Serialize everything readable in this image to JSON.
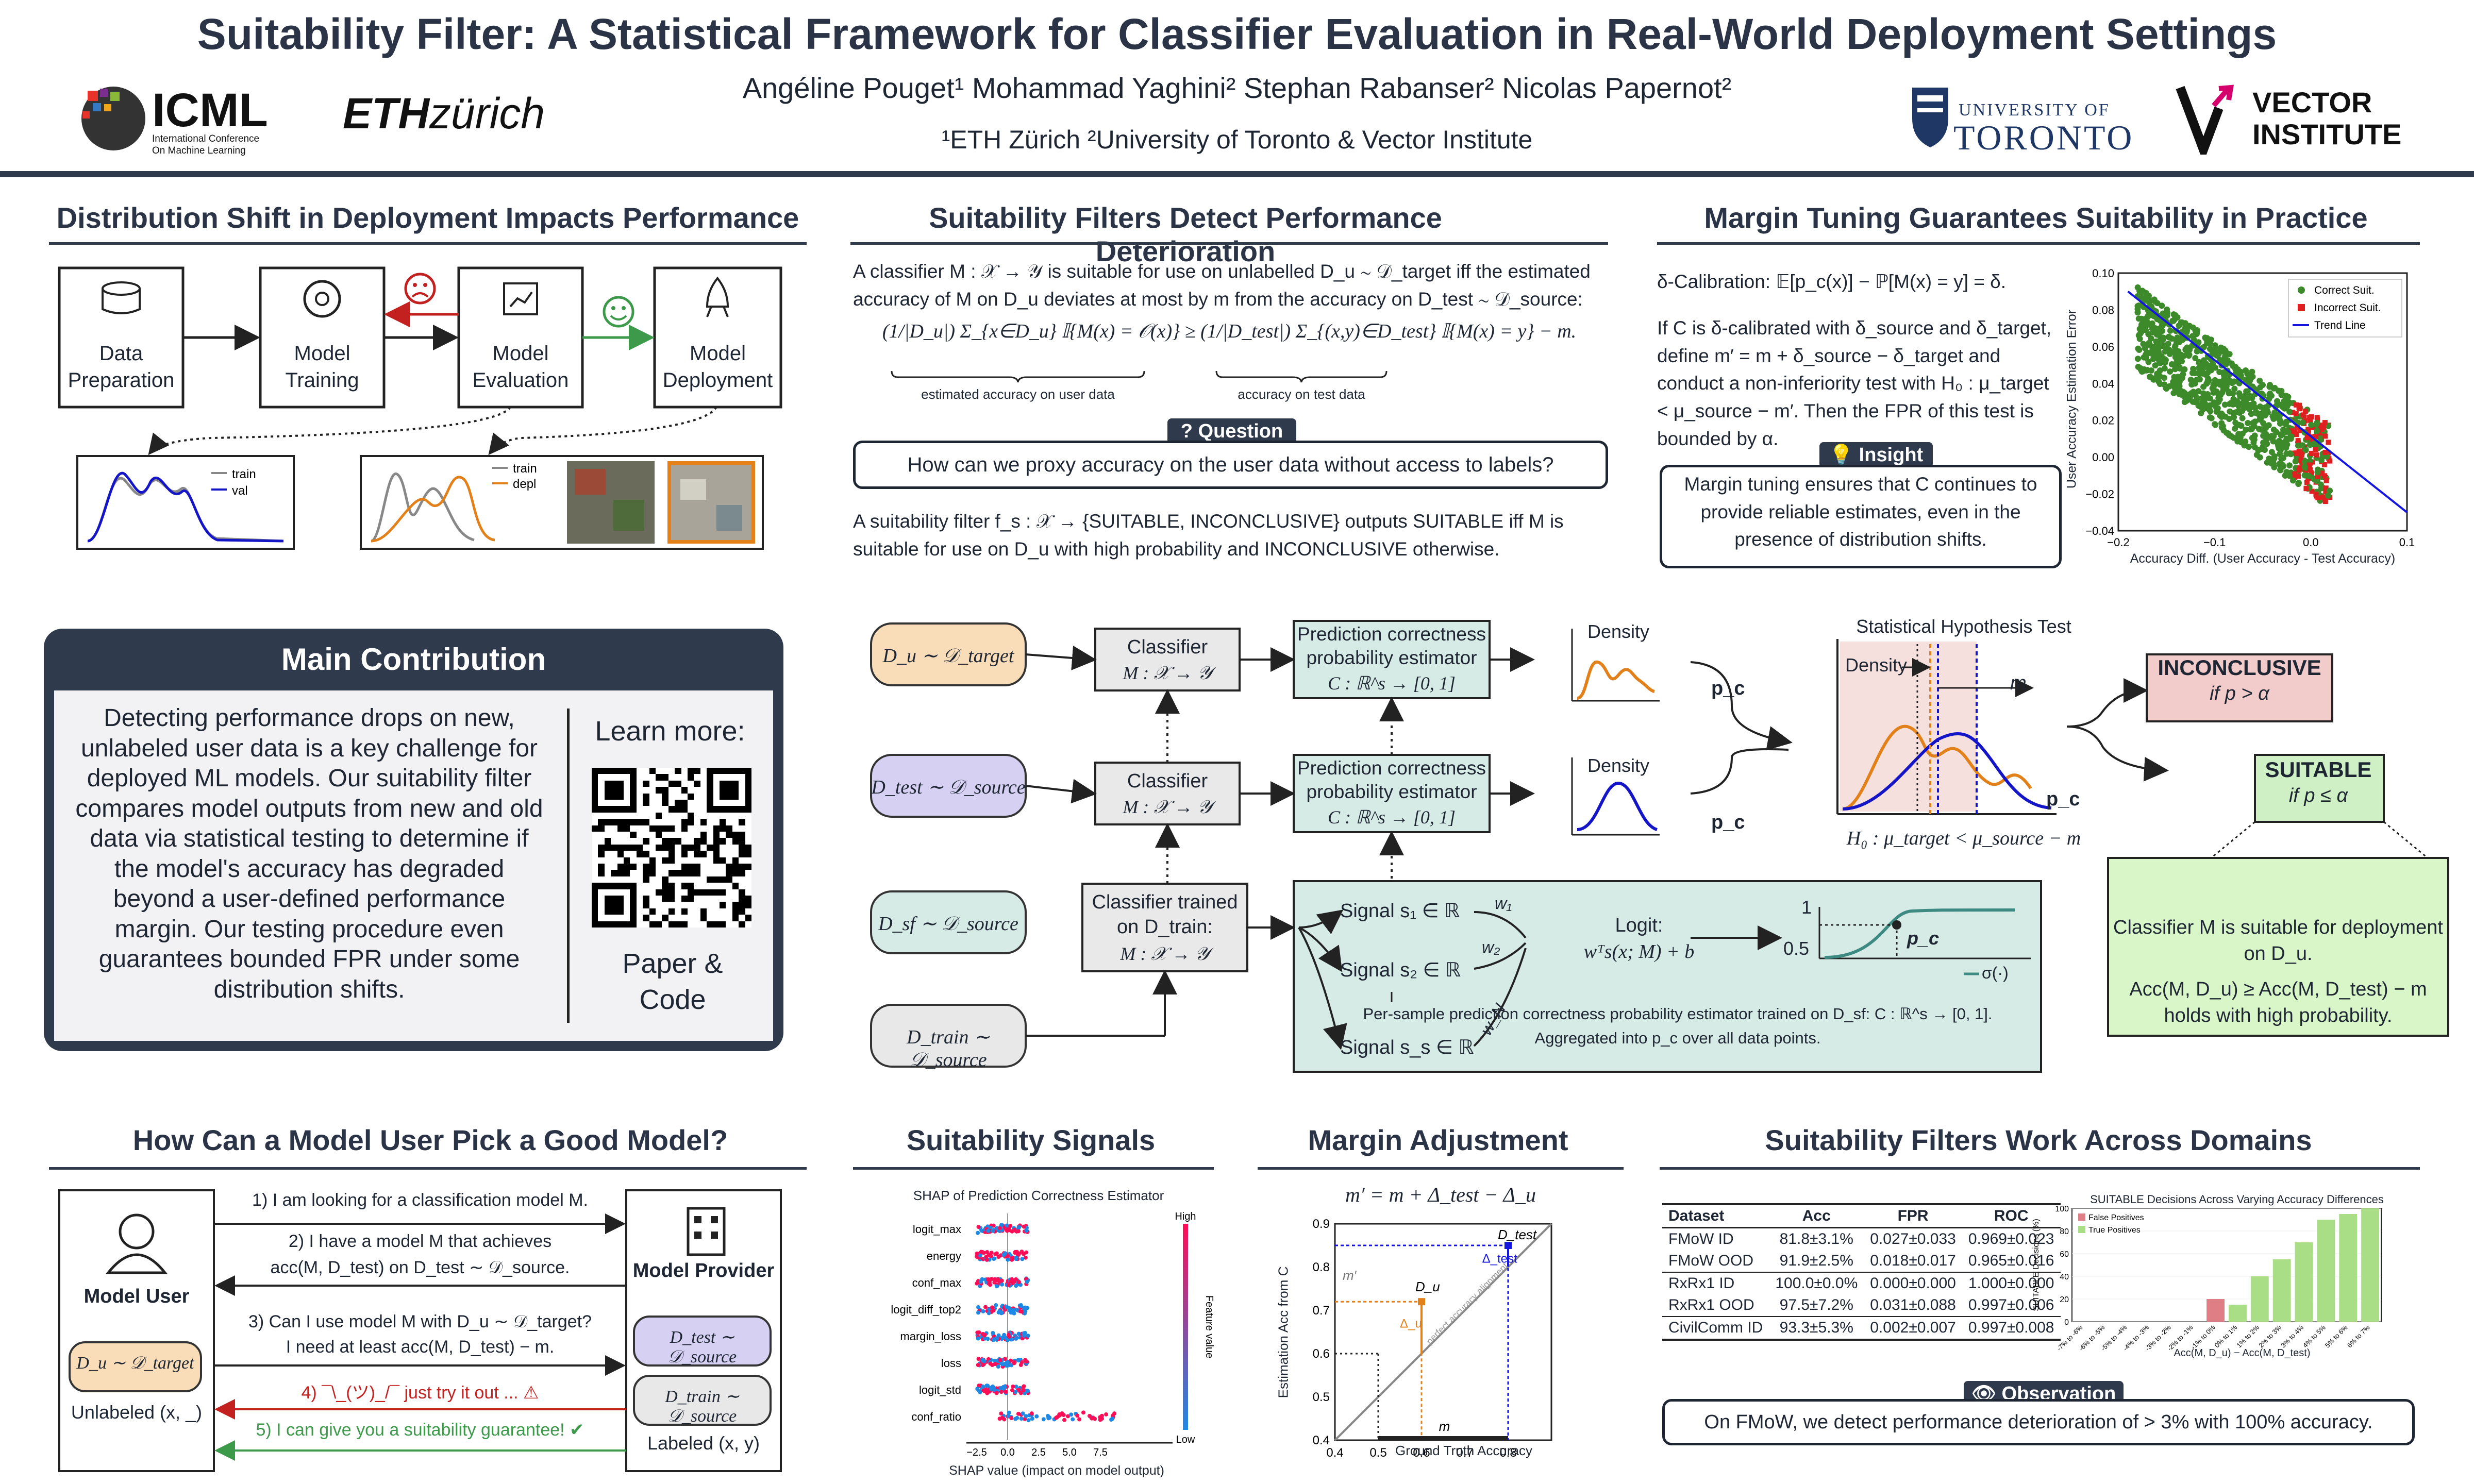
{
  "header": {
    "title": "Suitability Filter: A Statistical Framework for Classifier Evaluation in Real-World Deployment Settings",
    "authors": "Angéline Pouget¹ Mohammad Yaghini² Stephan Rabanser² Nicolas Papernot²",
    "affiliations": "¹ETH Zürich ²University of Toronto & Vector Institute",
    "logo_icml": "ICML",
    "logo_icml_sub": "International Conference On Machine Learning",
    "logo_eth": "ETH zürich",
    "logo_toronto_top": "UNIVERSITY OF",
    "logo_toronto": "TORONTO",
    "logo_vector": "VECTOR INSTITUTE"
  },
  "sections": {
    "dist_shift": "Distribution Shift in Deployment Impacts Performance",
    "filters_detect": "Suitability Filters Detect Performance Deterioration",
    "margin_tuning": "Margin Tuning Guarantees Suitability in Practice",
    "how_pick": "How Can a Model User Pick a Good Model?",
    "signals": "Suitability Signals",
    "margin_adj": "Margin Adjustment",
    "work_across": "Suitability Filters Work Across Domains"
  },
  "pipeline": {
    "steps": [
      "Data Preparation",
      "Model Training",
      "Model Evaluation",
      "Model Deployment"
    ],
    "legend1": [
      "train",
      "val"
    ],
    "legend2": [
      "train",
      "depl"
    ]
  },
  "suitable_def": {
    "text1": "A classifier M : 𝒳 → 𝒴 is suitable for use on unlabelled D_u ∼ 𝒟_target iff the estimated accuracy of M on D_u deviates at most by m from the accuracy on D_test ∼ 𝒟_source:",
    "formula": "(1/|D_u|) Σ_{x∈D_u} 𝕀{M(x) = 𝒪(x)} ≥ (1/|D_test|) Σ_{(x,y)∈D_test} 𝕀{M(x) = y} − m.",
    "brace1": "estimated accuracy on user data",
    "brace2": "accuracy on test data",
    "question_tag": "Question",
    "question": "How can we proxy accuracy on the user data without access to labels?",
    "text2": "A suitability filter f_s : 𝒳 → {SUITABLE, INCONCLUSIVE} outputs SUITABLE iff M is suitable for use on D_u with high probability and INCONCLUSIVE otherwise."
  },
  "margin": {
    "calib": "δ-Calibration: 𝔼[p_c(x)] − ℙ[M(x) = y] = δ.",
    "text": "If C is δ-calibrated with δ_source and δ_target, define m′ = m + δ_source − δ_target and conduct a non-inferiority test with H₀ : μ_target < μ_source − m′. Then the FPR of this test is bounded by α.",
    "insight_tag": "Insight",
    "insight": "Margin tuning ensures that C continues to provide reliable estimates, even in the presence of distribution shifts."
  },
  "scatter": {
    "xlabel": "Accuracy Diff. (User Accuracy - Test Accuracy)",
    "ylabel": "User Accuracy Estimation Error",
    "legend": [
      "Correct Suit.",
      "Incorrect Suit.",
      "Trend Line"
    ],
    "xticks": [
      "−0.2",
      "−0.1",
      "0.0",
      "0.1"
    ],
    "yticks": [
      "0.10",
      "0.08",
      "0.06",
      "0.04",
      "0.02",
      "0.00",
      "−0.02",
      "−0.04"
    ]
  },
  "main": {
    "title": "Main Contribution",
    "body": "Detecting performance drops on new, unlabeled user data is a key challenge for deployed ML models. Our suitability filter compares model outputs from new and old data via statistical testing to determine if the model's accuracy has degraded beyond a user-defined performance margin. Our testing procedure even guarantees bounded FPR under some distribution shifts.",
    "learn": "Learn more:",
    "paper": "Paper & Code"
  },
  "flow": {
    "du": "D_u ∼ 𝒟_target",
    "dtest": "D_test ∼ 𝒟_source",
    "dsf": "D_sf ∼ 𝒟_source",
    "dtrain": "D_train ∼ 𝒟_source",
    "classifier": "Classifier",
    "classifier_sig": "M : 𝒳 → 𝒴",
    "trained": "Classifier trained on D_train:",
    "estimator": "Prediction correctness probability estimator",
    "estimator_sig": "C : ℝ^s → [0, 1]",
    "density": "Density",
    "pc": "p_c",
    "signal1": "Signal s₁ ∈ ℝ",
    "signal2": "Signal s₂ ∈ ℝ",
    "signals": "Signal s_s ∈ ℝ",
    "w1": "w₁",
    "w2": "w₂",
    "wn": "w_N",
    "logit": "Logit:",
    "logit_eq": "wᵀs(x; M) + b",
    "sigma": "σ(·)",
    "one": "1",
    "half": "0.5",
    "per_sample": "Per-sample prediction correctness probability estimator trained on D_sf: C : ℝ^s → [0, 1]. Aggregated into p_c over all data points.",
    "test_title": "Statistical Hypothesis Test",
    "m": "m",
    "h0": "H₀ : μ_target < μ_source − m",
    "inconclusive": "INCONCLUSIVE",
    "if_gt": "if p > α",
    "suitable": "SUITABLE",
    "if_le": "if p ≤ α",
    "green_text1": "Classifier M is suitable for deployment on D_u.",
    "green_text2": "Acc(M, D_u) ≥ Acc(M, D_test) − m holds with high probability."
  },
  "pick": {
    "user": "Model User",
    "provider": "Model Provider",
    "du": "D_u ∼ 𝒟_target",
    "unlabeled": "Unlabeled (x, _)",
    "dtest": "D_test ∼ 𝒟_source",
    "dtrain": "D_train ∼ 𝒟_source",
    "labeled": "Labeled (x, y)",
    "msg1": "1) I am looking for a classification model M.",
    "msg2a": "2) I have a model M that achieves",
    "msg2b": "acc(M, D_test) on D_test ∼ 𝒟_source.",
    "msg3a": "3) Can I use model M with D_u ∼ 𝒟_target?",
    "msg3b": "I need at least acc(M, D_test) − m.",
    "msg4": "4) ¯\\_(ツ)_/¯ just try it out ...",
    "msg5": "5) I can give you a suitability guarantee!"
  },
  "shap": {
    "title": "SHAP of Prediction Correctness Estimator",
    "features": [
      "logit_max",
      "energy",
      "conf_max",
      "logit_diff_top2",
      "margin_loss",
      "loss",
      "logit_std",
      "conf_ratio"
    ],
    "xlabel": "SHAP value (impact on model output)",
    "xticks": [
      "−2.5",
      "0.0",
      "2.5",
      "5.0",
      "7.5"
    ],
    "high": "High",
    "low": "Low",
    "feature_value": "Feature value"
  },
  "adj": {
    "eq": "m′ = m + Δ_test − Δ_u",
    "xlabel": "Ground Truth Accuracy",
    "ylabel": "Estimation Acc from C",
    "xticks": [
      "0.4",
      "0.5",
      "0.6",
      "0.7",
      "0.8"
    ],
    "yticks": [
      "0.4",
      "0.5",
      "0.6",
      "0.7",
      "0.8",
      "0.9"
    ],
    "dtest": "D_test",
    "du": "D_u",
    "delta_test": "Δ_test",
    "delta_u": "Δ_u",
    "mprime": "m′",
    "m": "m",
    "perfect": "perfect accuracy alignment"
  },
  "results": {
    "headers": [
      "Dataset",
      "Acc",
      "FPR",
      "ROC"
    ],
    "rows": [
      [
        "FMoW ID",
        "81.8±3.1%",
        "0.027±0.033",
        "0.969±0.023"
      ],
      [
        "FMoW OOD",
        "91.9±2.5%",
        "0.018±0.017",
        "0.965±0.016"
      ],
      [
        "RxRx1 ID",
        "100.0±0.0%",
        "0.000±0.000",
        "1.000±0.000"
      ],
      [
        "RxRx1 OOD",
        "97.5±7.2%",
        "0.031±0.088",
        "0.997±0.006"
      ],
      [
        "CivilComm ID",
        "93.3±5.3%",
        "0.002±0.007",
        "0.997±0.008"
      ]
    ],
    "obs_tag": "Observation",
    "obs": "On FMoW, we detect performance deterioration of > 3% with 100% accuracy."
  },
  "chart_data": [
    {
      "type": "bar",
      "title": "SUITABLE Decisions Across Varying Accuracy Differences",
      "ylabel": "SUITABLE Decisions (%)",
      "xlabel": "Acc(M, D_u) − Acc(M, D_test)",
      "categories": [
        "-7% to -6%",
        "-6% to -5%",
        "-5% to -4%",
        "-4% to -3%",
        "-3% to -2%",
        "-2% to -1%",
        "-1% to 0%",
        "0% to 1%",
        "1% to 2%",
        "2% to 3%",
        "3% to 4%",
        "4% to 5%",
        "5% to 6%",
        "6% to 7%"
      ],
      "series": [
        {
          "name": "False Positives",
          "values": [
            0,
            0,
            0,
            0,
            0,
            0,
            20,
            0,
            0,
            0,
            0,
            0,
            0,
            0
          ]
        },
        {
          "name": "True Positives",
          "values": [
            0,
            0,
            0,
            0,
            0,
            0,
            0,
            15,
            40,
            55,
            70,
            90,
            95,
            100
          ]
        }
      ],
      "yticks": [
        "0",
        "20",
        "40",
        "60",
        "80",
        "100"
      ],
      "ylim": [
        0,
        100
      ]
    }
  ]
}
